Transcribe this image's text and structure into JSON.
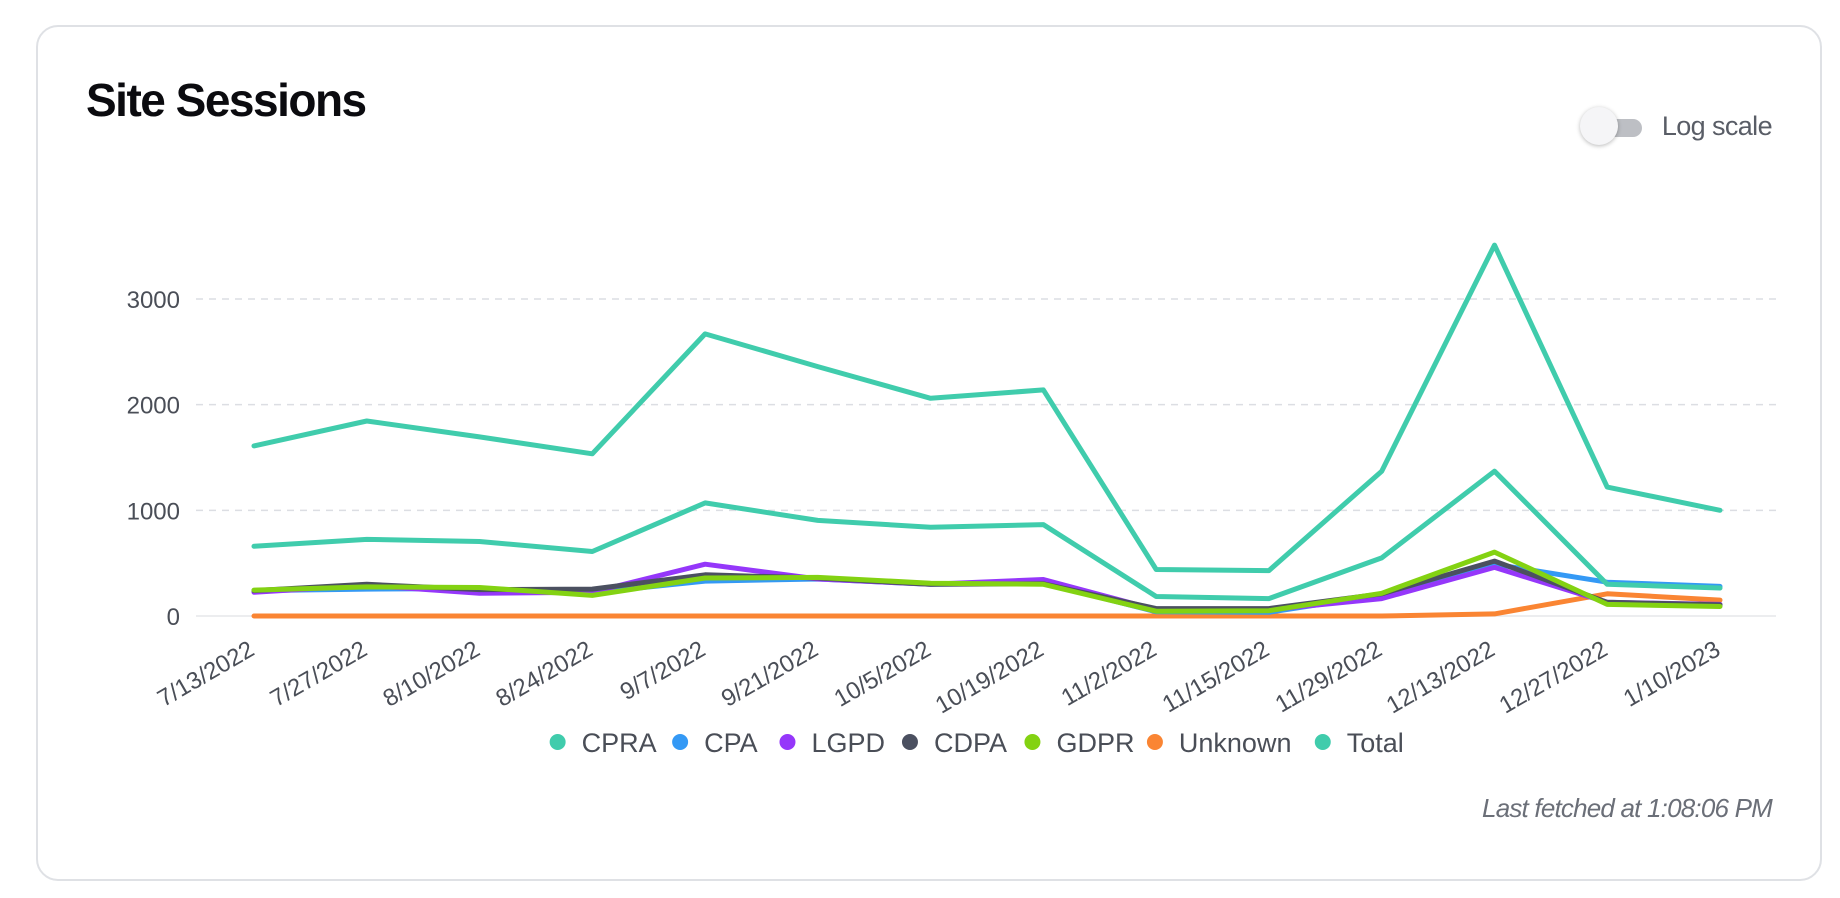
{
  "card": {
    "title": "Site Sessions",
    "log_scale_label": "Log scale",
    "log_scale_enabled": false,
    "fetched_text": "Last fetched at 1:08:06 PM"
  },
  "chart_data": {
    "type": "line",
    "title": "Site Sessions",
    "xlabel": "",
    "ylabel": "",
    "ylim": [
      0,
      3750
    ],
    "yticks": [
      0,
      1000,
      2000,
      3000
    ],
    "grid": true,
    "legend_position": "bottom",
    "categories": [
      "7/13/2022",
      "7/27/2022",
      "8/10/2022",
      "8/24/2022",
      "9/7/2022",
      "9/21/2022",
      "10/5/2022",
      "10/19/2022",
      "11/2/2022",
      "11/15/2022",
      "11/29/2022",
      "12/13/2022",
      "12/27/2022",
      "1/10/2023"
    ],
    "series": [
      {
        "name": "Unknown",
        "color": "#fa8533",
        "values": [
          0,
          0,
          0,
          0,
          0,
          0,
          0,
          0,
          0,
          0,
          0,
          20,
          210,
          150
        ]
      },
      {
        "name": "CPA",
        "color": "#3499f5",
        "values": [
          240,
          255,
          260,
          220,
          330,
          350,
          300,
          310,
          40,
          35,
          200,
          490,
          320,
          280
        ]
      },
      {
        "name": "LGPD",
        "color": "#9537fa",
        "values": [
          225,
          290,
          215,
          225,
          490,
          350,
          300,
          345,
          60,
          60,
          165,
          460,
          130,
          110
        ]
      },
      {
        "name": "CDPA",
        "color": "#4b5060",
        "values": [
          240,
          300,
          250,
          255,
          390,
          360,
          300,
          305,
          70,
          70,
          210,
          520,
          130,
          105
        ]
      },
      {
        "name": "GDPR",
        "color": "#83d212",
        "values": [
          245,
          275,
          270,
          195,
          360,
          365,
          310,
          300,
          45,
          50,
          215,
          605,
          110,
          90
        ]
      },
      {
        "name": "CPRA",
        "color": "#40ccac",
        "values": [
          660,
          725,
          705,
          610,
          1070,
          905,
          840,
          865,
          185,
          165,
          550,
          1370,
          300,
          265
        ]
      },
      {
        "name": "Total",
        "color": "#40ccac",
        "values": [
          1610,
          1845,
          1695,
          1535,
          2670,
          2360,
          2060,
          2140,
          440,
          430,
          1370,
          3510,
          1220,
          1000
        ]
      }
    ],
    "legend": [
      {
        "name": "CPRA",
        "color": "#40ccac"
      },
      {
        "name": "CPA",
        "color": "#3499f5"
      },
      {
        "name": "LGPD",
        "color": "#9537fa"
      },
      {
        "name": "CDPA",
        "color": "#4b5060"
      },
      {
        "name": "GDPR",
        "color": "#83d212"
      },
      {
        "name": "Unknown",
        "color": "#fa8533"
      },
      {
        "name": "Total",
        "color": "#40ccac"
      }
    ]
  }
}
